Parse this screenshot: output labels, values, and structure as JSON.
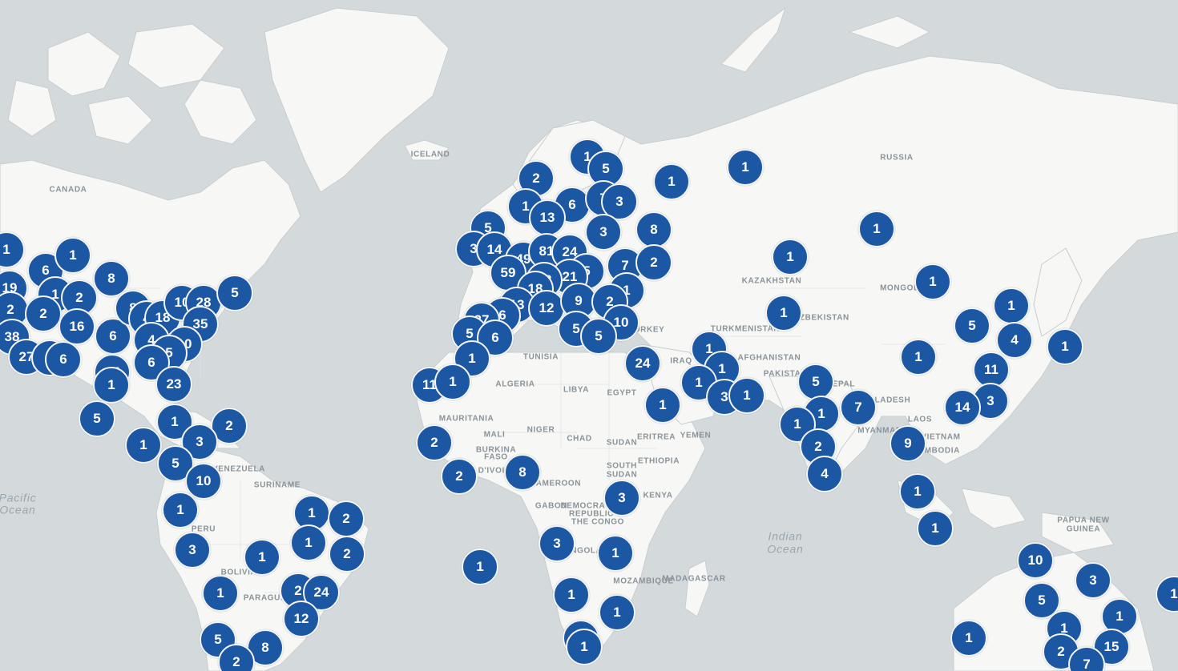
{
  "country_labels": [
    "CANADA",
    "ICELAND",
    "RUSSIA",
    "KAZAKHSTAN",
    "TURKMENISTAN",
    "AFGHANISTAN",
    "PAKISTAN",
    "TUNISIA",
    "ALGERIA",
    "LIBYA",
    "EGYPT",
    "MAURITANIA",
    "MALI",
    "NIGER",
    "CHAD",
    "SUDAN",
    "ERITREA",
    "YEMEN",
    "BURKINA",
    "FASO",
    "SOUTH",
    "SUDAN",
    "ETHIOPIA",
    "KENYA",
    "GABON",
    "DEMOCRATIC",
    "REPUBLIC",
    "THE CONGO",
    "MOZAMBIQUE",
    "CAMEROON",
    "VENEZUELA",
    "SURINAME",
    "PERU",
    "BOLIVIA",
    "PARAGUAY",
    "LAOS",
    "VIETNAM",
    "PAPUA NEW",
    "GUINEA",
    "NEPAL",
    "IRAQ",
    "TURKEY",
    "MADAGASCAR",
    "MONGOLIA",
    "UZBEKISTAN",
    "BANGLADESH",
    "MYANMAR",
    "CAMBODIA",
    "ANGOLA",
    "COTE D'IVOIRE"
  ],
  "ocean_labels": [
    "Pacific",
    "Ocean",
    "Indian",
    "Ocean"
  ],
  "clusters": [
    "1",
    "6",
    "1",
    "19",
    "2",
    "1",
    "8",
    "2",
    "2",
    "16",
    "38",
    "6",
    "27",
    "4",
    "6",
    "8",
    "4",
    "18",
    "10",
    "28",
    "5",
    "35",
    "4",
    "10",
    "5",
    "6",
    "15",
    "1",
    "23",
    "5",
    "1",
    "2",
    "1",
    "3",
    "5",
    "10",
    "1",
    "1",
    "3",
    "1",
    "2",
    "1",
    "2",
    "2",
    "24",
    "12",
    "1",
    "5",
    "8",
    "2",
    "1",
    "5",
    "2",
    "6",
    "7",
    "3",
    "1",
    "13",
    "3",
    "8",
    "5",
    "3",
    "14",
    "49",
    "81",
    "24",
    "59",
    "5",
    "21",
    "7",
    "2",
    "58",
    "18",
    "13",
    "6",
    "12",
    "1",
    "9",
    "2",
    "10",
    "27",
    "5",
    "6",
    "1",
    "5",
    "5",
    "24",
    "1",
    "1",
    "1",
    "1",
    "1",
    "1",
    "1",
    "1",
    "1",
    "1",
    "1",
    "3",
    "1",
    "1",
    "5",
    "1",
    "7",
    "1",
    "2",
    "4",
    "9",
    "1",
    "1",
    "5",
    "11",
    "4",
    "1",
    "3",
    "14",
    "11",
    "1",
    "2",
    "8",
    "2",
    "1",
    "3",
    "3",
    "1",
    "1",
    "1",
    "1",
    "1",
    "10",
    "3",
    "5",
    "1",
    "1",
    "1",
    "2",
    "15",
    "7",
    "1"
  ]
}
